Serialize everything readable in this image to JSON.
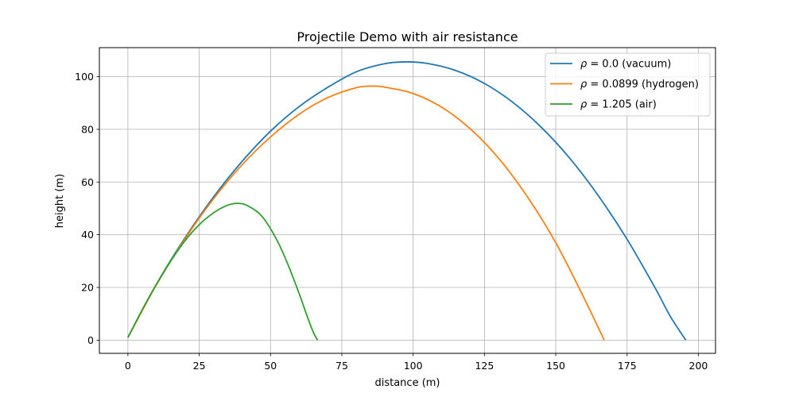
{
  "chart_data": {
    "type": "line",
    "title": "Projectile Demo with air resistance",
    "xlabel": "distance (m)",
    "ylabel": "height (m)",
    "xlim": [
      -10,
      206
    ],
    "ylim": [
      -5,
      111
    ],
    "xticks": [
      0,
      25,
      50,
      75,
      100,
      125,
      150,
      175,
      200
    ],
    "yticks": [
      0,
      20,
      40,
      60,
      80,
      100
    ],
    "grid": true,
    "legend_position": "top-right",
    "series": [
      {
        "name": "ρ = 0.0 (vacuum)",
        "legend_rho": "0.0",
        "legend_rest": " (vacuum)",
        "color": "#1f77b4",
        "x": [
          0,
          10,
          20,
          30,
          40,
          50,
          60,
          70,
          80,
          90,
          97.5,
          105,
          115,
          125,
          135,
          145,
          155,
          165,
          175,
          185,
          190,
          195.6
        ],
        "y": [
          1,
          21.2,
          38.8,
          54.3,
          67.8,
          79.3,
          88.6,
          95.9,
          101.8,
          104.9,
          105.6,
          105.0,
          102.3,
          97.4,
          90.2,
          80.7,
          68.9,
          54.7,
          38.3,
          19.5,
          9.3,
          0
        ]
      },
      {
        "name": "ρ = 0.0899 (hydrogen)",
        "legend_rho": "0.0899",
        "legend_rest": " (hydrogen)",
        "color": "#ff7f0e",
        "x": [
          0,
          10,
          20,
          30,
          40,
          50,
          60,
          70,
          80,
          85.5,
          90,
          100,
          110,
          120,
          130,
          140,
          150,
          160,
          167
        ],
        "y": [
          1,
          21.0,
          38.4,
          53.6,
          66.5,
          77.1,
          85.7,
          92.0,
          95.8,
          96.4,
          96.0,
          93.6,
          88.4,
          80.2,
          69.0,
          54.5,
          37.0,
          15.8,
          0
        ]
      },
      {
        "name": "ρ = 1.205 (air)",
        "legend_rho": "1.205",
        "legend_rest": " (air)",
        "color": "#2ca02c",
        "x": [
          0,
          5,
          10,
          15,
          20,
          25,
          30,
          35,
          38.5,
          42,
          47,
          52,
          56,
          60,
          63,
          65,
          66.5
        ],
        "y": [
          1,
          11.5,
          21.2,
          30.0,
          37.7,
          43.8,
          48.3,
          51.2,
          51.9,
          51.0,
          47.0,
          38.5,
          29.0,
          17.8,
          8.6,
          3.0,
          0
        ]
      }
    ]
  }
}
